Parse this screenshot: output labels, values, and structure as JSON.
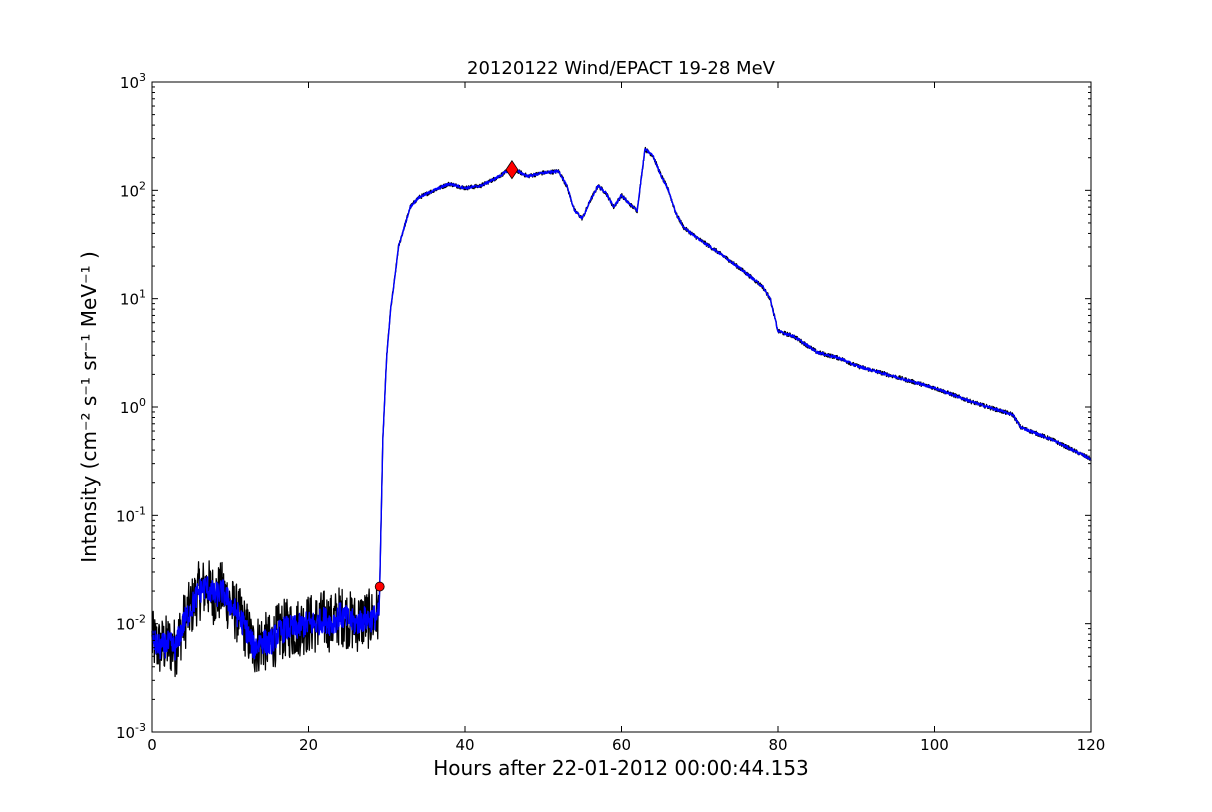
{
  "chart_data": {
    "type": "line",
    "title": "20120122 Wind/EPACT 19-28 MeV",
    "xlabel": "Hours after 22-01-2012 00:00:44.153",
    "ylabel": "Intensity (cm⁻² s⁻¹ sr⁻¹ MeV⁻¹ )",
    "xlim": [
      0,
      120
    ],
    "ylim": [
      0.001,
      1000
    ],
    "yscale": "log",
    "grid": false,
    "x_tick_labels": [
      "0",
      "20",
      "40",
      "60",
      "80",
      "100",
      "120"
    ],
    "y_tick_labels": [
      {
        "base": "10",
        "exp": "-3"
      },
      {
        "base": "10",
        "exp": "-2"
      },
      {
        "base": "10",
        "exp": "-1"
      },
      {
        "base": "10",
        "exp": "0"
      },
      {
        "base": "10",
        "exp": "1"
      },
      {
        "base": "10",
        "exp": "2"
      },
      {
        "base": "10",
        "exp": "3"
      }
    ],
    "series": [
      {
        "role": "raw intensity",
        "color": "#000000",
        "noisy": true,
        "x": [
          0,
          1,
          2,
          3,
          4,
          5,
          6,
          7,
          8,
          9,
          10,
          11,
          12,
          13,
          14,
          15,
          16,
          17,
          18,
          19,
          20,
          21,
          22,
          23,
          24,
          25,
          26,
          27,
          28,
          29,
          29.1,
          29.5,
          30,
          30.5,
          31,
          31.5,
          32,
          33,
          34,
          36,
          38,
          40,
          42,
          44,
          46,
          48,
          50,
          52,
          53,
          54,
          55,
          56,
          57,
          58,
          59,
          60,
          61,
          62,
          63,
          64,
          65,
          66,
          67,
          68,
          70,
          72,
          74,
          76,
          78,
          79,
          80,
          82,
          85,
          88,
          90,
          95,
          100,
          105,
          110,
          111,
          115,
          120
        ],
        "y": [
          0.007,
          0.006,
          0.0065,
          0.006,
          0.01,
          0.014,
          0.02,
          0.022,
          0.018,
          0.02,
          0.015,
          0.012,
          0.009,
          0.006,
          0.007,
          0.0065,
          0.008,
          0.009,
          0.009,
          0.0095,
          0.01,
          0.01,
          0.011,
          0.01,
          0.012,
          0.011,
          0.01,
          0.011,
          0.011,
          0.012,
          0.022,
          0.5,
          3,
          8,
          15,
          30,
          40,
          70,
          85,
          100,
          115,
          105,
          110,
          130,
          160,
          135,
          145,
          150,
          110,
          65,
          55,
          80,
          110,
          95,
          70,
          90,
          75,
          65,
          240,
          210,
          140,
          100,
          60,
          45,
          35,
          28,
          22,
          17,
          13,
          10,
          5,
          4.5,
          3.2,
          2.8,
          2.4,
          1.9,
          1.5,
          1.1,
          0.85,
          0.65,
          0.5,
          0.33
        ]
      },
      {
        "role": "smoothed intensity",
        "color": "#0000ff",
        "noisy": false,
        "x": [
          0,
          1,
          2,
          3,
          4,
          5,
          6,
          7,
          8,
          9,
          10,
          11,
          12,
          13,
          14,
          15,
          16,
          17,
          18,
          19,
          20,
          21,
          22,
          23,
          24,
          25,
          26,
          27,
          28,
          29,
          29.1,
          29.5,
          30,
          30.5,
          31,
          31.5,
          32,
          33,
          34,
          36,
          38,
          40,
          42,
          44,
          46,
          48,
          50,
          52,
          53,
          54,
          55,
          56,
          57,
          58,
          59,
          60,
          61,
          62,
          63,
          64,
          65,
          66,
          67,
          68,
          70,
          72,
          74,
          76,
          78,
          79,
          80,
          82,
          85,
          88,
          90,
          95,
          100,
          105,
          110,
          111,
          115,
          120
        ],
        "y": [
          0.007,
          0.006,
          0.0065,
          0.006,
          0.01,
          0.014,
          0.02,
          0.022,
          0.018,
          0.02,
          0.015,
          0.012,
          0.009,
          0.006,
          0.007,
          0.0065,
          0.008,
          0.009,
          0.009,
          0.0095,
          0.01,
          0.01,
          0.011,
          0.01,
          0.012,
          0.011,
          0.01,
          0.011,
          0.011,
          0.012,
          0.022,
          0.5,
          3,
          8,
          15,
          30,
          40,
          70,
          85,
          100,
          115,
          105,
          110,
          130,
          160,
          135,
          145,
          150,
          110,
          65,
          55,
          80,
          110,
          95,
          70,
          90,
          75,
          65,
          240,
          210,
          140,
          100,
          60,
          45,
          35,
          28,
          22,
          17,
          13,
          10,
          5,
          4.5,
          3.2,
          2.8,
          2.4,
          1.9,
          1.5,
          1.1,
          0.85,
          0.65,
          0.5,
          0.33
        ]
      }
    ],
    "markers": [
      {
        "role": "onset",
        "shape": "circle",
        "color": "#ff0000",
        "x": 29.1,
        "y": 0.022
      },
      {
        "role": "peak",
        "shape": "diamond",
        "color": "#ff0000",
        "x": 46,
        "y": 155
      }
    ]
  }
}
